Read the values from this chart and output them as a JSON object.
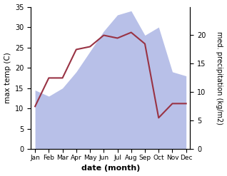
{
  "months": [
    "Jan",
    "Feb",
    "Mar",
    "Apr",
    "May",
    "Jun",
    "Jul",
    "Aug",
    "Sep",
    "Oct",
    "Nov",
    "Dec"
  ],
  "max_temp": [
    14.5,
    13.0,
    15.0,
    19.0,
    24.0,
    29.0,
    33.0,
    34.0,
    28.0,
    30.0,
    19.0,
    18.0
  ],
  "precipitation": [
    7.5,
    12.5,
    12.5,
    17.5,
    18.0,
    20.0,
    19.5,
    20.5,
    18.5,
    5.5,
    8.0,
    8.0
  ],
  "temp_color_fill": "#b8c0e8",
  "precip_color": "#993344",
  "ylim_left": [
    0,
    35
  ],
  "ylim_right": [
    0,
    25
  ],
  "yticks_left": [
    0,
    5,
    10,
    15,
    20,
    25,
    30,
    35
  ],
  "yticks_right": [
    0,
    5,
    10,
    15,
    20
  ],
  "xlabel": "date (month)",
  "ylabel_left": "max temp (C)",
  "ylabel_right": "med. precipitation (kg/m2)",
  "bg_color": "#ffffff"
}
